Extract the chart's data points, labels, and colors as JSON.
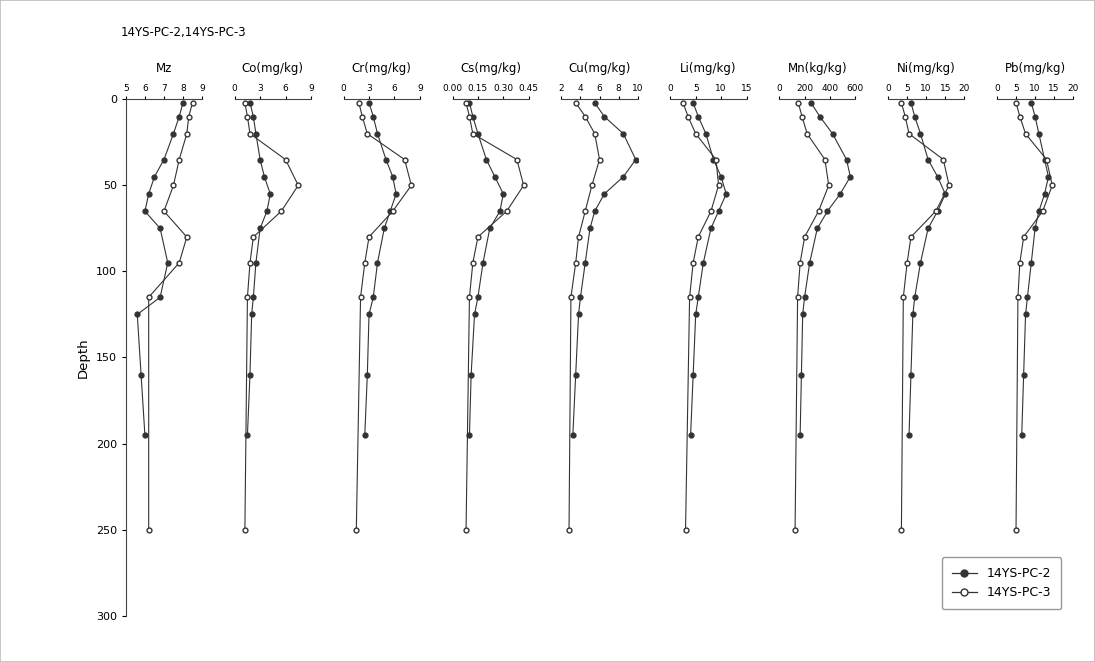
{
  "title": "14YS-PC-2,14YS-PC-3",
  "ylabel": "Depth",
  "ylim": [
    300,
    0
  ],
  "yticks": [
    0,
    50,
    100,
    150,
    200,
    250,
    300
  ],
  "panels": [
    {
      "label": "Mz",
      "xlim": [
        5,
        9
      ],
      "xticks": [
        5,
        6,
        7,
        8,
        9
      ],
      "xticklabels": [
        "5",
        "6",
        "7",
        "8",
        "9"
      ],
      "pc2_depth": [
        2,
        10,
        20,
        35,
        45,
        55,
        65,
        75,
        95,
        115,
        125,
        160,
        195
      ],
      "pc2_val": [
        8.0,
        7.8,
        7.5,
        7.0,
        6.5,
        6.2,
        6.0,
        6.8,
        7.2,
        6.8,
        5.6,
        5.8,
        6.0
      ],
      "pc3_depth": [
        2,
        10,
        20,
        35,
        50,
        65,
        80,
        95,
        115,
        250
      ],
      "pc3_val": [
        8.5,
        8.3,
        8.2,
        7.8,
        7.5,
        7.0,
        8.2,
        7.8,
        6.2,
        6.2
      ]
    },
    {
      "label": "Co(mg/kg)",
      "xlim": [
        0,
        9
      ],
      "xticks": [
        0,
        3,
        6,
        9
      ],
      "xticklabels": [
        "0",
        "3",
        "6",
        "9"
      ],
      "pc2_depth": [
        2,
        10,
        20,
        35,
        45,
        55,
        65,
        75,
        95,
        115,
        125,
        160,
        195
      ],
      "pc2_val": [
        1.8,
        2.2,
        2.5,
        3.0,
        3.5,
        4.2,
        3.8,
        3.0,
        2.5,
        2.2,
        2.0,
        1.8,
        1.5
      ],
      "pc3_depth": [
        2,
        10,
        20,
        35,
        50,
        65,
        80,
        95,
        115,
        250
      ],
      "pc3_val": [
        1.2,
        1.5,
        1.8,
        6.0,
        7.5,
        5.5,
        2.2,
        1.8,
        1.5,
        1.2
      ]
    },
    {
      "label": "Cr(mg/kg)",
      "xlim": [
        0,
        9
      ],
      "xticks": [
        0,
        3,
        6,
        9
      ],
      "xticklabels": [
        "0",
        "3",
        "6",
        "9"
      ],
      "pc2_depth": [
        2,
        10,
        20,
        35,
        45,
        55,
        65,
        75,
        95,
        115,
        125,
        160,
        195
      ],
      "pc2_val": [
        3.0,
        3.5,
        4.0,
        5.0,
        5.8,
        6.2,
        5.5,
        4.8,
        4.0,
        3.5,
        3.0,
        2.8,
        2.5
      ],
      "pc3_depth": [
        2,
        10,
        20,
        35,
        50,
        65,
        80,
        95,
        115,
        250
      ],
      "pc3_val": [
        1.8,
        2.2,
        2.8,
        7.2,
        8.0,
        5.8,
        3.0,
        2.5,
        2.0,
        1.5
      ]
    },
    {
      "label": "Cs(mg/kg)",
      "xlim": [
        0.0,
        0.45
      ],
      "xticks": [
        0.0,
        0.15,
        0.3,
        0.45
      ],
      "xticklabels": [
        "0.00",
        "0.15",
        "0.30",
        "0.45"
      ],
      "pc2_depth": [
        2,
        10,
        20,
        35,
        45,
        55,
        65,
        75,
        95,
        115,
        125,
        160,
        195
      ],
      "pc2_val": [
        0.1,
        0.12,
        0.15,
        0.2,
        0.25,
        0.3,
        0.28,
        0.22,
        0.18,
        0.15,
        0.13,
        0.11,
        0.1
      ],
      "pc3_depth": [
        2,
        10,
        20,
        35,
        50,
        65,
        80,
        95,
        115,
        250
      ],
      "pc3_val": [
        0.08,
        0.1,
        0.12,
        0.38,
        0.42,
        0.32,
        0.15,
        0.12,
        0.1,
        0.08
      ]
    },
    {
      "label": "Cu(mg/kg)",
      "xlim": [
        2,
        10
      ],
      "xticks": [
        2,
        4,
        6,
        8,
        10
      ],
      "xticklabels": [
        "2",
        "4",
        "6",
        "8",
        "10"
      ],
      "pc2_depth": [
        2,
        10,
        20,
        35,
        45,
        55,
        65,
        75,
        95,
        115,
        125,
        160,
        195
      ],
      "pc2_val": [
        5.5,
        6.5,
        8.5,
        9.8,
        8.5,
        6.5,
        5.5,
        5.0,
        4.5,
        4.0,
        3.8,
        3.5,
        3.2
      ],
      "pc3_depth": [
        2,
        10,
        20,
        35,
        50,
        65,
        80,
        95,
        115,
        250
      ],
      "pc3_val": [
        3.5,
        4.5,
        5.5,
        6.0,
        5.2,
        4.5,
        3.8,
        3.5,
        3.0,
        2.8
      ]
    },
    {
      "label": "Li(mg/kg)",
      "xlim": [
        0,
        15
      ],
      "xticks": [
        0,
        5,
        10,
        15
      ],
      "xticklabels": [
        "0",
        "5",
        "10",
        "15"
      ],
      "pc2_depth": [
        2,
        10,
        20,
        35,
        45,
        55,
        65,
        75,
        95,
        115,
        125,
        160,
        195
      ],
      "pc2_val": [
        4.5,
        5.5,
        7.0,
        8.5,
        10.0,
        11.0,
        9.5,
        8.0,
        6.5,
        5.5,
        5.0,
        4.5,
        4.0
      ],
      "pc3_depth": [
        2,
        10,
        20,
        35,
        50,
        65,
        80,
        95,
        115,
        250
      ],
      "pc3_val": [
        2.5,
        3.5,
        5.0,
        9.0,
        9.5,
        8.0,
        5.5,
        4.5,
        3.8,
        3.0
      ]
    },
    {
      "label": "Mn(kg/kg)",
      "xlim": [
        0,
        600
      ],
      "xticks": [
        0,
        200,
        400,
        600
      ],
      "xticklabels": [
        "0",
        "200",
        "400",
        "600"
      ],
      "pc2_depth": [
        2,
        10,
        20,
        35,
        45,
        55,
        65,
        75,
        95,
        115,
        125,
        160,
        195
      ],
      "pc2_val": [
        250,
        320,
        420,
        530,
        560,
        480,
        380,
        300,
        240,
        200,
        185,
        175,
        165
      ],
      "pc3_depth": [
        2,
        10,
        20,
        35,
        50,
        65,
        80,
        95,
        115,
        250
      ],
      "pc3_val": [
        150,
        180,
        220,
        360,
        390,
        310,
        200,
        165,
        145,
        125
      ]
    },
    {
      "label": "Ni(mg/kg)",
      "xlim": [
        0,
        20
      ],
      "xticks": [
        0,
        5,
        10,
        15,
        20
      ],
      "xticklabels": [
        "0",
        "5",
        "10",
        "15",
        "20"
      ],
      "pc2_depth": [
        2,
        10,
        20,
        35,
        45,
        55,
        65,
        75,
        95,
        115,
        125,
        160,
        195
      ],
      "pc2_val": [
        6.0,
        7.0,
        8.5,
        10.5,
        13.0,
        15.0,
        13.0,
        10.5,
        8.5,
        7.0,
        6.5,
        6.0,
        5.5
      ],
      "pc3_depth": [
        2,
        10,
        20,
        35,
        50,
        65,
        80,
        95,
        115,
        250
      ],
      "pc3_val": [
        3.5,
        4.5,
        5.5,
        14.5,
        16.0,
        12.5,
        6.0,
        5.0,
        4.0,
        3.5
      ]
    },
    {
      "label": "Pb(mg/kg)",
      "xlim": [
        0,
        20
      ],
      "xticks": [
        0,
        5,
        10,
        15,
        20
      ],
      "xticklabels": [
        "0",
        "5",
        "10",
        "15",
        "20"
      ],
      "pc2_depth": [
        2,
        10,
        20,
        35,
        45,
        55,
        65,
        75,
        95,
        115,
        125,
        160,
        195
      ],
      "pc2_val": [
        9.0,
        10.0,
        11.0,
        12.5,
        13.5,
        12.5,
        11.0,
        10.0,
        9.0,
        8.0,
        7.5,
        7.0,
        6.5
      ],
      "pc3_depth": [
        2,
        10,
        20,
        35,
        50,
        65,
        80,
        95,
        115,
        250
      ],
      "pc3_val": [
        5.0,
        6.0,
        7.5,
        13.0,
        14.5,
        12.0,
        7.0,
        6.0,
        5.5,
        5.0
      ]
    }
  ],
  "legend_labels": [
    "14YS-PC-2",
    "14YS-PC-3"
  ],
  "line_color": "#333333",
  "markersize": 3.5
}
